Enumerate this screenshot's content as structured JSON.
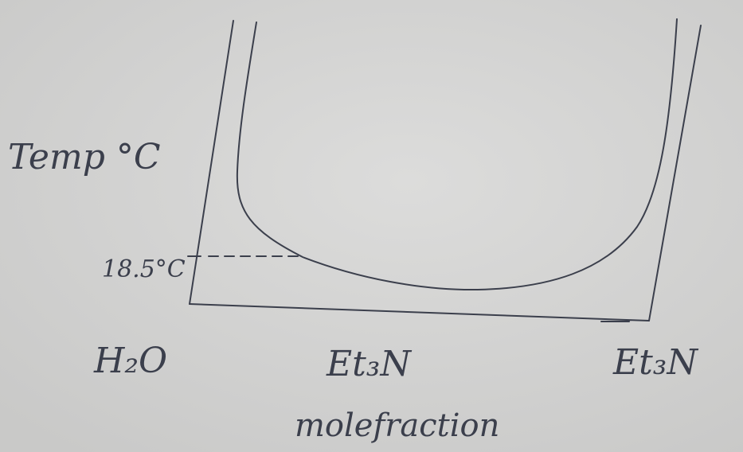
{
  "y_axis_label": "Temp °C",
  "marked_temperature": "18.5°C",
  "x_left_label": "H₂O",
  "x_middle_label": "Et₃N",
  "x_axis_caption": "molefraction",
  "x_right_label": "Et₃N"
}
